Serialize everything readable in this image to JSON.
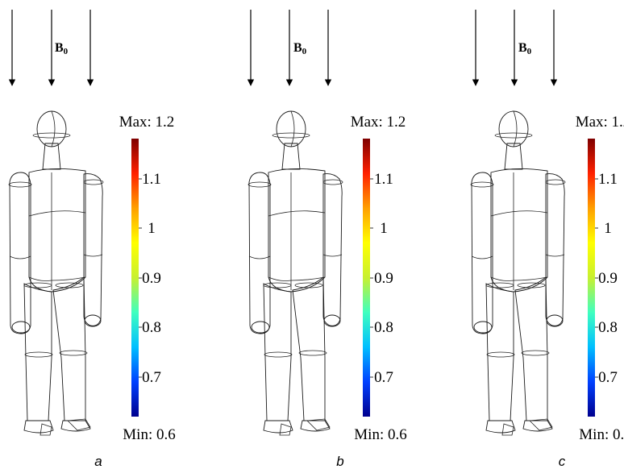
{
  "field_label": {
    "main": "B",
    "sub": "0"
  },
  "colorbar": {
    "max_label": "Max: 1.2",
    "min_label": "Min: 0.6",
    "ticks": [
      "1.1",
      "1",
      "0.9",
      "0.8",
      "0.7"
    ],
    "gradient": [
      "#00008f",
      "#0040ff",
      "#00bfff",
      "#40ffbf",
      "#c8f030",
      "#ffff00",
      "#ff9f00",
      "#ff2000",
      "#7f0000"
    ]
  },
  "panels": [
    {
      "caption": "a",
      "colors": {
        "head_top": "#3aa8f0",
        "head_bottom": "#58c8f0",
        "neck": "#f03a10",
        "shoulder_rim": "#f8a020",
        "torso_top": "#9cd860",
        "torso_mid": "#a8dc48",
        "torso_bottom": "#c0e040",
        "arm_top": "#50b8e8",
        "arm_mid": "#a0d850",
        "arm_bottom": "#c8e038",
        "hand": "#3080e0",
        "leg_top": "#d8e830",
        "leg_mid": "#d0e238",
        "leg_bottom": "#98d860",
        "foot": "#2a70e0",
        "groin": "#f09020"
      }
    },
    {
      "caption": "b",
      "colors": {
        "head_top": "#1030d0",
        "head_bottom": "#2c90f0",
        "neck": "#e82a10",
        "shoulder_rim": "#e8c020",
        "torso_top": "#48c0e8",
        "torso_mid": "#70d0c0",
        "torso_bottom": "#90d880",
        "arm_top": "#1050d8",
        "arm_mid": "#40b8e8",
        "arm_bottom": "#90d070",
        "hand": "#1040d0",
        "leg_top": "#c8e040",
        "leg_mid": "#b0dc58",
        "leg_bottom": "#50c0e0",
        "foot": "#1848d8",
        "groin": "#f09020"
      }
    },
    {
      "caption": "c",
      "colors": {
        "head_top": "#0c28c8",
        "head_bottom": "#2080ee",
        "neck": "#e82810",
        "shoulder_rim": "#e8c020",
        "torso_top": "#40b8ec",
        "torso_mid": "#50c8e0",
        "torso_bottom": "#60d0c8",
        "arm_top": "#0c40d0",
        "arm_mid": "#38b0ec",
        "arm_bottom": "#70cca8",
        "hand": "#0c38c8",
        "leg_top": "#a8da60",
        "leg_mid": "#90d670",
        "leg_bottom": "#40b8ec",
        "foot": "#1038d0",
        "groin": "#e8b030"
      }
    }
  ]
}
